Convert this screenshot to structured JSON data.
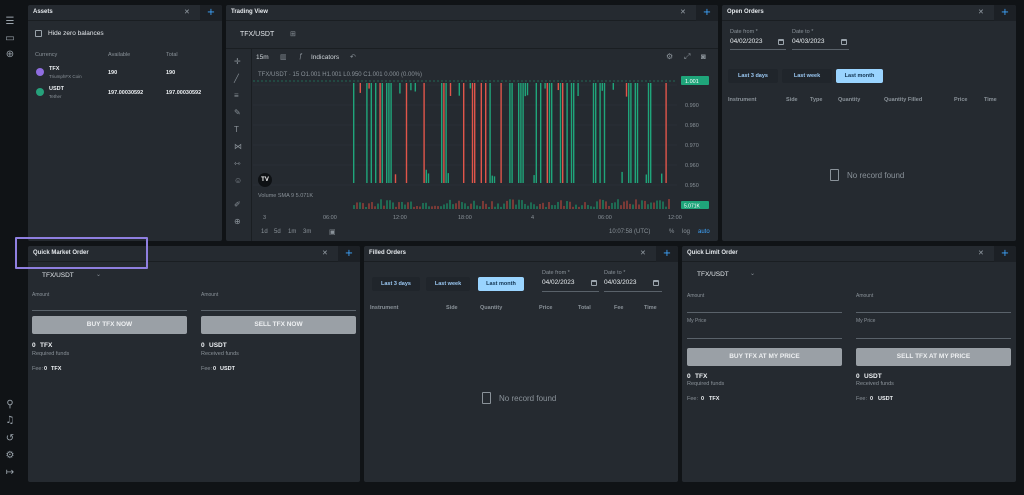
{
  "sidebar": {
    "icons": [
      "menu-icon",
      "window-icon",
      "add-circle-icon",
      "lightbulb-icon",
      "bell-icon",
      "history-icon",
      "settings-icon",
      "logout-icon"
    ]
  },
  "assets": {
    "title": "Assets",
    "hide_zero": "Hide zero balances",
    "columns": [
      "Currency",
      "Available",
      "Total"
    ],
    "rows": [
      {
        "symbol": "TFX",
        "name": "TriumphFX Coin",
        "available": "190",
        "total": "190",
        "color": "#8f6de0"
      },
      {
        "symbol": "USDT",
        "name": "Tether",
        "available": "197.00030592",
        "total": "197.00030592",
        "color": "#26a17b"
      }
    ]
  },
  "trading": {
    "title": "Trading View",
    "pair": "TFX/USDT",
    "interval": "15m",
    "indicators": "Indicators",
    "legend": "TFX/USDT · 15  O1.001 H1.001 L0.950 C1.001 0.000 (0.00%)",
    "volume": "Volume SMA 9  5.071K",
    "price_axis": [
      "1.001",
      "0.990",
      "0.980",
      "0.970",
      "0.960",
      "0.950"
    ],
    "price_badge": "1.001",
    "volume_badge": "5.071K",
    "time_axis": [
      "3",
      "06:00",
      "12:00",
      "18:00",
      "4",
      "06:00",
      "12:00"
    ],
    "ranges": [
      "1d",
      "5d",
      "1m",
      "3m"
    ],
    "clock": "10:07:58 (UTC)",
    "pct": "%",
    "log": "log",
    "auto": "auto"
  },
  "open_orders": {
    "title": "Open Orders",
    "date_from_label": "Date from *",
    "date_from": "04/02/2023",
    "date_to_label": "Date to *",
    "date_to": "04/03/2023",
    "chips": [
      "Last 3 days",
      "Last week",
      "Last month"
    ],
    "columns": [
      "Instrument",
      "Side",
      "Type",
      "Quantity",
      "Quantity Filled",
      "Price",
      "Time"
    ],
    "empty": "No record found"
  },
  "quick_market": {
    "title": "Quick Market Order",
    "pair": "TFX/USDT",
    "amount": "Amount",
    "buy": "BUY TFX NOW",
    "sell": "SELL TFX NOW",
    "buy_val": "0",
    "buy_cur": "TFX",
    "required": "Required funds",
    "sell_val": "0",
    "sell_cur": "USDT",
    "received": "Received funds",
    "fee_label": "Fee:",
    "fee_buy_val": "0",
    "fee_buy_cur": "TFX",
    "fee_sell_val": "0",
    "fee_sell_cur": "USDT"
  },
  "filled_orders": {
    "title": "Filled Orders",
    "chips": [
      "Last 3 days",
      "Last week",
      "Last month"
    ],
    "date_from_label": "Date from *",
    "date_from": "04/02/2023",
    "date_to_label": "Date to *",
    "date_to": "04/03/2023",
    "columns": [
      "Instrument",
      "Side",
      "Quantity",
      "Price",
      "Total",
      "Fee",
      "Time"
    ],
    "empty": "No record found"
  },
  "quick_limit": {
    "title": "Quick Limit Order",
    "pair": "TFX/USDT",
    "amount": "Amount",
    "my_price": "My Price",
    "buy": "BUY TFX AT MY PRICE",
    "sell": "SELL TFX AT MY PRICE",
    "buy_val": "0",
    "buy_cur": "TFX",
    "required": "Required funds",
    "sell_val": "0",
    "sell_cur": "USDT",
    "received": "Received funds",
    "fee_label": "Fee:",
    "fee_buy_val": "0",
    "fee_buy_cur": "TFX",
    "fee_sell_val": "0",
    "fee_sell_cur": "USDT"
  },
  "colors": {
    "up": "#1fa57a",
    "down": "#e0554a",
    "accent": "#3ea6ff",
    "active_chip": "#9ad4ff"
  }
}
